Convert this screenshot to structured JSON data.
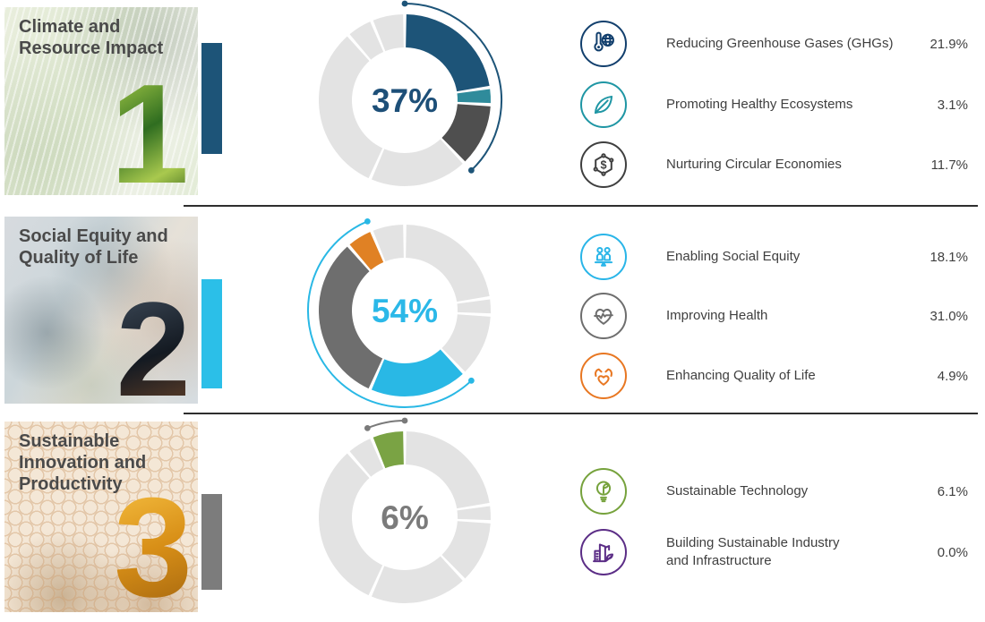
{
  "donut": {
    "track_color": "#e3e3e3",
    "outer_radius": 96,
    "inner_radius": 59,
    "bracket_radius": 108
  },
  "sections": [
    {
      "number": "1",
      "title": "Climate and Resource Impact",
      "title_lines": [
        "Climate and",
        "Resource Impact"
      ],
      "accent_color": "#1d5478",
      "bracket_color": "#1d5478",
      "center_label": "37%",
      "center_label_color": "#1d4f78",
      "items": [
        {
          "label": "Reducing Greenhouse Gases (GHGs)",
          "value": "21.9%",
          "pct": 21.9,
          "color": "#1d5478",
          "icon_color": "#123f6d",
          "icon": "thermometer-globe-icon"
        },
        {
          "label": "Promoting Healthy Ecosystems",
          "value": "3.1%",
          "pct": 3.1,
          "color": "#2f8b9b",
          "icon_color": "#1f96a4",
          "icon": "leaf-icon"
        },
        {
          "label": "Nurturing Circular Economies",
          "value": "11.7%",
          "pct": 11.7,
          "color": "#4f4f4f",
          "icon_color": "#3f3f3f",
          "icon": "circular-economy-icon"
        }
      ]
    },
    {
      "number": "2",
      "title": "Social Equity and Quality of Life",
      "title_lines": [
        "Social Equity and",
        "Quality of Life"
      ],
      "accent_color": "#2bbfe8",
      "bracket_color": "#29b8e5",
      "center_label": "54%",
      "center_label_color": "#2bb8e8",
      "items": [
        {
          "label": "Enabling Social Equity",
          "value": "18.1%",
          "pct": 18.1,
          "color": "#29b8e5",
          "icon_color": "#29b5e8",
          "icon": "people-balance-icon"
        },
        {
          "label": "Improving Health",
          "value": "31.0%",
          "pct": 31.0,
          "color": "#6e6e6e",
          "icon_color": "#6e6e6e",
          "icon": "heart-pulse-icon"
        },
        {
          "label": "Enhancing Quality of Life",
          "value": "4.9%",
          "pct": 4.9,
          "color": "#e08124",
          "icon_color": "#e87722",
          "icon": "hands-heart-icon"
        }
      ]
    },
    {
      "number": "3",
      "title": "Sustainable Innovation and Productivity",
      "title_lines": [
        "Sustainable",
        "Innovation and",
        "Productivity"
      ],
      "accent_color": "#7c7c7c",
      "bracket_color": "#7a7a7a",
      "center_label": "6%",
      "center_label_color": "#7b7b7b",
      "items": [
        {
          "label": "Sustainable Technology",
          "value": "6.1%",
          "pct": 6.1,
          "color": "#7aa344",
          "icon_color": "#76a23c",
          "icon": "bulb-leaf-icon"
        },
        {
          "label": "Building Sustainable Industry and Infrastructure",
          "label_lines": [
            "Building Sustainable Industry",
            "and Infrastructure"
          ],
          "value": "0.0%",
          "pct": 0.0,
          "color": "#5b2d86",
          "icon_color": "#5b2d86",
          "icon": "building-leaf-icon"
        }
      ]
    }
  ],
  "chart_data": [
    {
      "type": "pie",
      "subtype": "donut",
      "title": "Climate and Resource Impact",
      "center_label": "37%",
      "categories": [
        "Reducing Greenhouse Gases (GHGs)",
        "Promoting Healthy Ecosystems",
        "Nurturing Circular Economies"
      ],
      "values": [
        21.9,
        3.1,
        11.7
      ],
      "colors": [
        "#1d5478",
        "#2f8b9b",
        "#4f4f4f"
      ],
      "layout": "all 8 categories of the 3 themes share one wheel starting at 12 o'clock clockwise; other themes drawn in light gray #e3e3e3; theme span marked by outer arc with end dots"
    },
    {
      "type": "pie",
      "subtype": "donut",
      "title": "Social Equity and Quality of Life",
      "center_label": "54%",
      "categories": [
        "Enabling Social Equity",
        "Improving Health",
        "Enhancing Quality of Life"
      ],
      "values": [
        18.1,
        31.0,
        4.9
      ],
      "colors": [
        "#29b8e5",
        "#6e6e6e",
        "#e08124"
      ],
      "layout": "segments occupy the 136.5°-337.3° span of the shared wheel; remainder light gray; cyan outer arc with end dots"
    },
    {
      "type": "pie",
      "subtype": "donut",
      "title": "Sustainable Innovation and Productivity",
      "center_label": "6%",
      "categories": [
        "Sustainable Technology",
        "Building Sustainable Industry and Infrastructure"
      ],
      "values": [
        6.1,
        0.0
      ],
      "colors": [
        "#7aa344",
        "#5b2d86"
      ],
      "layout": "green segment just left of 12 o'clock; remainder light gray; gray outer arc with end dots"
    }
  ]
}
